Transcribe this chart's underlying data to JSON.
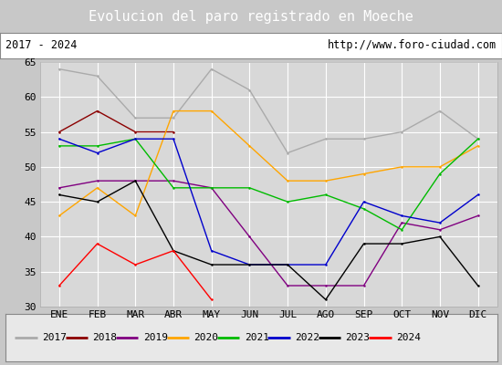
{
  "title": "Evolucion del paro registrado en Moeche",
  "subtitle_left": "2017 - 2024",
  "subtitle_right": "http://www.foro-ciudad.com",
  "months": [
    "ENE",
    "FEB",
    "MAR",
    "ABR",
    "MAY",
    "JUN",
    "JUL",
    "AGO",
    "SEP",
    "OCT",
    "NOV",
    "DIC"
  ],
  "series": {
    "2017": {
      "values": [
        64,
        63,
        57,
        57,
        64,
        61,
        52,
        54,
        54,
        55,
        58,
        54
      ],
      "color": "#aaaaaa",
      "linewidth": 1.0
    },
    "2018": {
      "values": [
        55,
        58,
        55,
        55,
        null,
        null,
        null,
        null,
        null,
        null,
        null,
        null
      ],
      "color": "#8b0000",
      "linewidth": 1.0
    },
    "2019": {
      "values": [
        47,
        48,
        48,
        48,
        47,
        40,
        33,
        33,
        33,
        42,
        41,
        43
      ],
      "color": "#800080",
      "linewidth": 1.0
    },
    "2020": {
      "values": [
        43,
        47,
        43,
        58,
        58,
        53,
        48,
        48,
        49,
        50,
        50,
        53
      ],
      "color": "#ffa500",
      "linewidth": 1.0
    },
    "2021": {
      "values": [
        53,
        53,
        54,
        47,
        47,
        47,
        45,
        46,
        44,
        41,
        49,
        54
      ],
      "color": "#00bb00",
      "linewidth": 1.0
    },
    "2022": {
      "values": [
        54,
        52,
        54,
        54,
        38,
        36,
        36,
        36,
        45,
        43,
        42,
        46
      ],
      "color": "#0000cc",
      "linewidth": 1.0
    },
    "2023": {
      "values": [
        46,
        45,
        48,
        38,
        36,
        36,
        36,
        31,
        39,
        39,
        40,
        33
      ],
      "color": "#000000",
      "linewidth": 1.0
    },
    "2024": {
      "values": [
        33,
        39,
        36,
        38,
        31,
        null,
        null,
        null,
        null,
        null,
        null,
        null
      ],
      "color": "#ff0000",
      "linewidth": 1.0
    }
  },
  "ylim": [
    30,
    65
  ],
  "yticks": [
    30,
    35,
    40,
    45,
    50,
    55,
    60,
    65
  ],
  "plot_bg_color": "#d8d8d8",
  "header_bg_color": "#4472c4",
  "title_color": "#ffffff",
  "outer_bg_color": "#c8c8c8",
  "legend_bg_color": "#e8e8e8",
  "grid_color": "#ffffff",
  "title_fontsize": 11,
  "tick_fontsize": 8,
  "legend_fontsize": 8
}
